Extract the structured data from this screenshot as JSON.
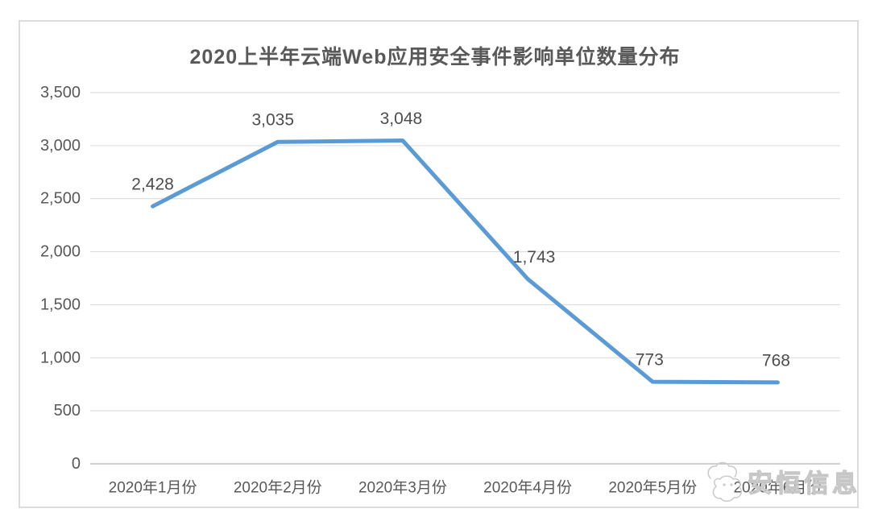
{
  "chart_data": {
    "type": "line",
    "title": "2020上半年云端Web应用安全事件影响单位数量分布",
    "categories": [
      "2020年1月份",
      "2020年2月份",
      "2020年3月份",
      "2020年4月份",
      "2020年5月份",
      "2020年6月份"
    ],
    "values": [
      2428,
      3035,
      3048,
      1743,
      773,
      768
    ],
    "value_labels": [
      "2,428",
      "3,035",
      "3,048",
      "1,743",
      "773",
      "768"
    ],
    "xlabel": "",
    "ylabel": "",
    "ylim": [
      0,
      3500
    ],
    "y_tick_interval": 500,
    "y_tick_labels": [
      "0",
      "500",
      "1,000",
      "1,500",
      "2,000",
      "2,500",
      "3,000",
      "3,500"
    ],
    "grid": true,
    "legend": "none",
    "line_color": "#5b9bd5",
    "gridline_color": "#d9d9d9",
    "axis_line_color": "#bfbfbf",
    "text_color": "#595959",
    "data_label_color": "#4d4d4d"
  },
  "watermark": {
    "label": "安恒信息"
  }
}
